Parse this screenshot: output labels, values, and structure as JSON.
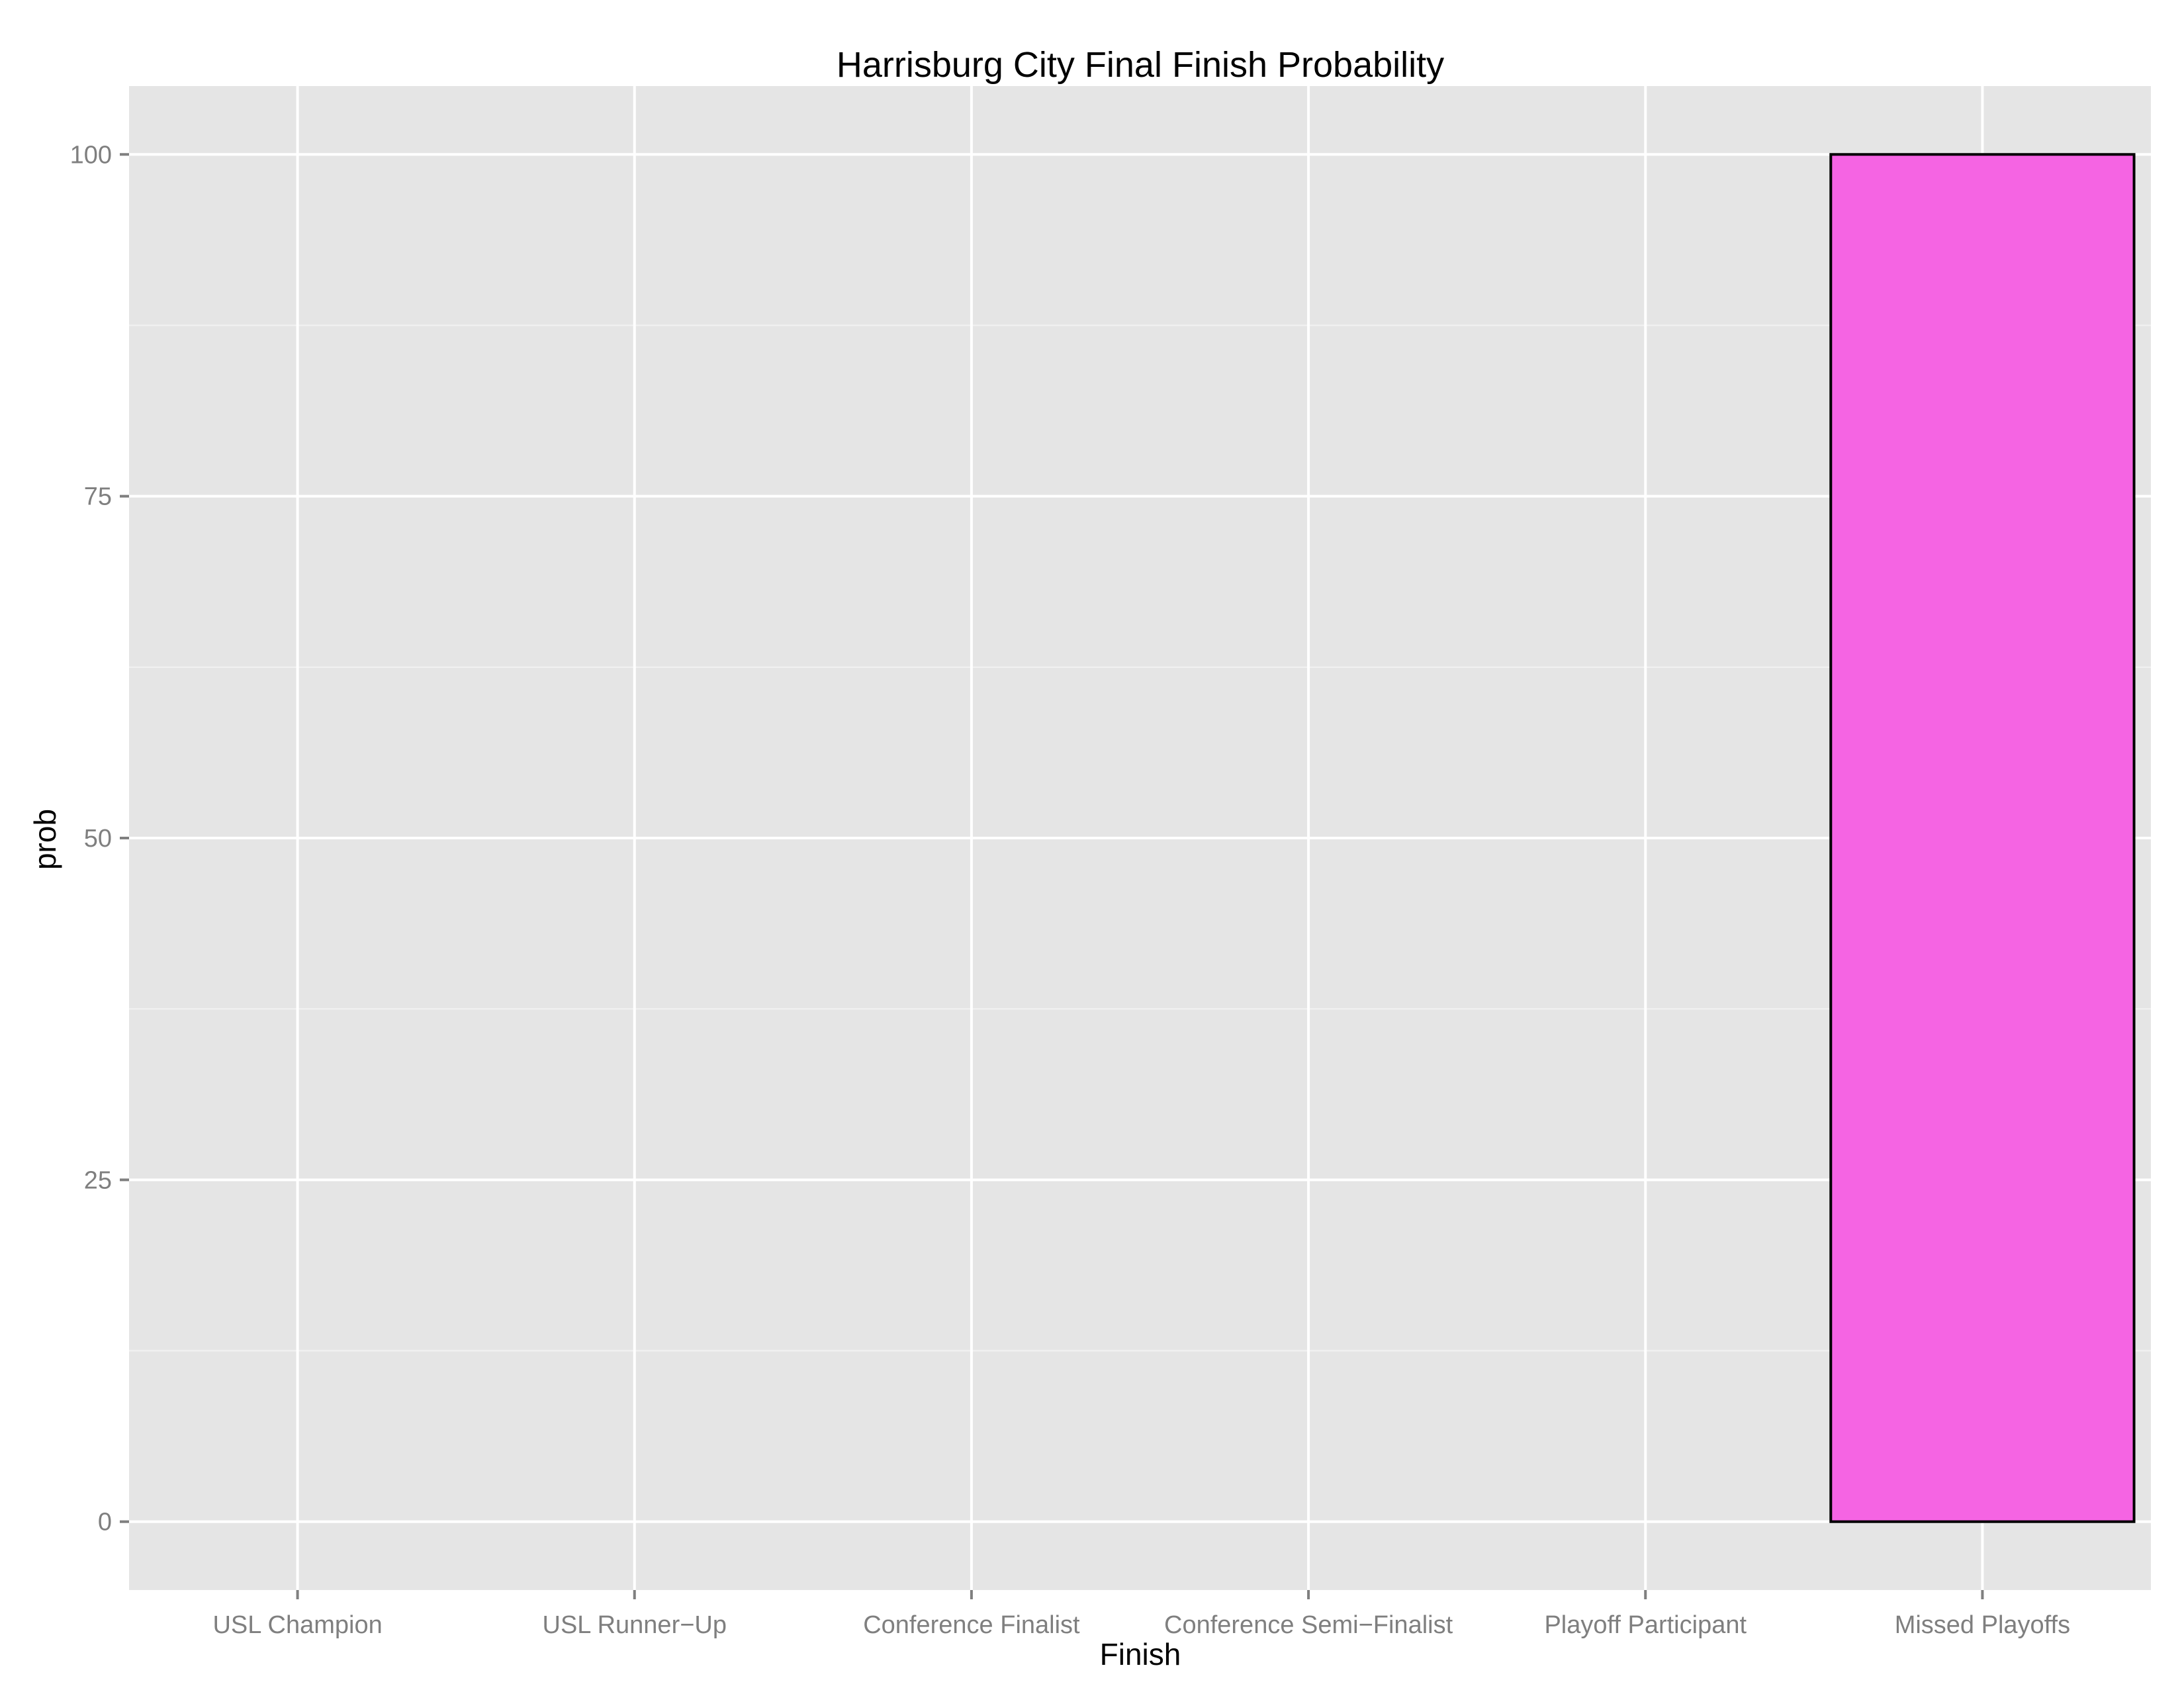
{
  "chart_data": {
    "type": "bar",
    "title": "Harrisburg City Final Finish Probability",
    "xlabel": "Finish",
    "ylabel": "prob",
    "categories": [
      "USL Champion",
      "USL Runner−Up",
      "Conference Finalist",
      "Conference Semi−Finalist",
      "Playoff Participant",
      "Missed Playoffs"
    ],
    "values": [
      0,
      0,
      0,
      0,
      0,
      100
    ],
    "ylim": [
      -5,
      105
    ],
    "yticks": [
      0,
      25,
      50,
      75,
      100
    ],
    "grid": true,
    "legend": "none",
    "colors": {
      "panel_background": "#e5e5e5",
      "grid_major": "#ffffff",
      "grid_minor": "#f2f2f2",
      "bar_fill": "#f564e3",
      "bar_outline": "#000000",
      "tick_text": "#7f7f7f"
    }
  }
}
